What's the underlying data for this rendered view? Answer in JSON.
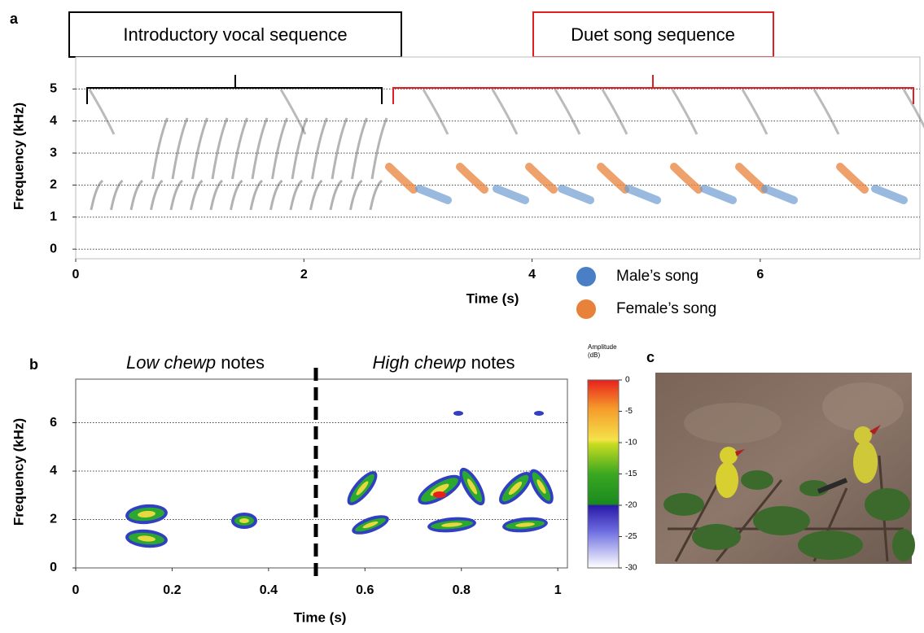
{
  "chart_data": [
    {
      "type": "spectrogram",
      "panel_label": "a",
      "annotations": [
        "Introductory vocal sequence",
        "Duet song sequence"
      ],
      "xlabel": "Time (s)",
      "ylabel": "Frequency (kHz)",
      "xlim": [
        0,
        7.4
      ],
      "xticks": [
        0,
        2,
        4,
        6
      ],
      "ylim": [
        -0.3,
        6
      ],
      "yticks": [
        0,
        1,
        2,
        3,
        4,
        5
      ],
      "grid": true,
      "legend": [
        {
          "name": "Male’s song",
          "color": "#4a7fc6"
        },
        {
          "name": "Female’s song",
          "color": "#e8823a"
        }
      ]
    },
    {
      "type": "spectrogram",
      "panel_label": "b",
      "annotations": [
        {
          "italic": "Low chewp",
          "text": "notes"
        },
        {
          "italic": "High chewp",
          "text": "notes"
        }
      ],
      "xlabel": "Time (s)",
      "ylabel": "Frequency (kHz)",
      "xlim": [
        0,
        1.02
      ],
      "xticks": [
        0,
        0.2,
        0.4,
        0.6,
        0.8,
        1
      ],
      "ylim": [
        0,
        7.8
      ],
      "yticks": [
        0,
        2,
        4,
        6
      ],
      "grid": true
    },
    {
      "type": "colorbar",
      "title": [
        "Amplitude",
        "(dB)"
      ],
      "ylim": [
        -30,
        0
      ],
      "yticks": [
        0,
        -5,
        -10,
        -15,
        -20,
        -25,
        -30
      ]
    }
  ],
  "photo": {
    "panel_label": "c"
  }
}
